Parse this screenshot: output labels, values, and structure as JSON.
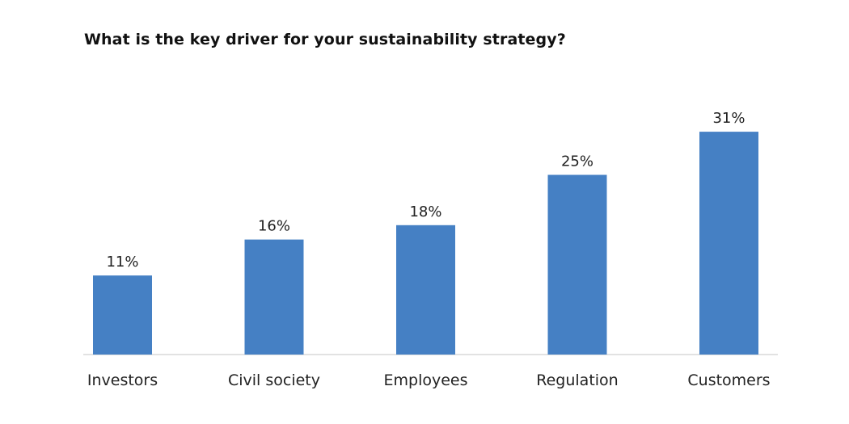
{
  "chart_data": {
    "type": "bar",
    "title": "What is the key driver for your sustainability strategy?",
    "categories": [
      "Investors",
      "Civil society",
      "Employees",
      "Regulation",
      "Customers"
    ],
    "values": [
      11,
      16,
      18,
      25,
      31
    ],
    "value_labels": [
      "11%",
      "16%",
      "18%",
      "25%",
      "31%"
    ],
    "unit": "%",
    "ylim": [
      0,
      35
    ],
    "grid": false,
    "legend": "none",
    "bar_color": "#4580c4",
    "axis_color": "#d9d9d9"
  }
}
